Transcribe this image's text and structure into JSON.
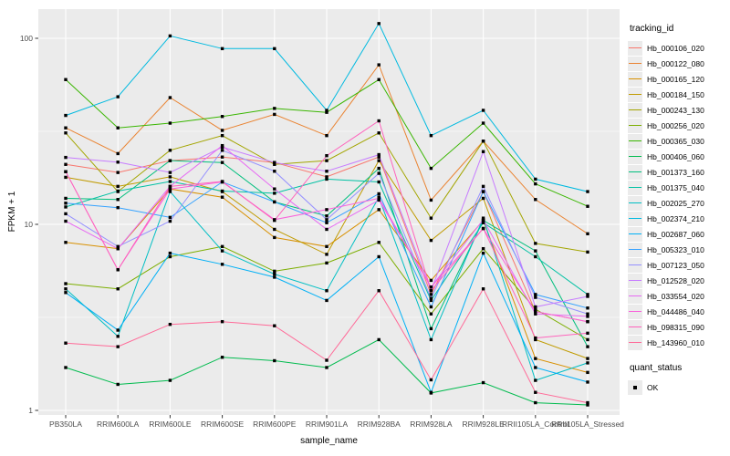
{
  "figure": {
    "background": "#FFFFFF",
    "panel_background": "#EBEBEB",
    "grid_color": "#FFFFFF",
    "axis_text_color": "#4D4D4D",
    "tick_color": "#333333",
    "point_color": "#000000",
    "legend_key_background": "#EBEBEB"
  },
  "legend": {
    "tracking_title": "tracking_id",
    "quant_title": "quant_status",
    "quant_items": [
      {
        "label": "OK"
      }
    ]
  },
  "chart_data": {
    "type": "line",
    "title": "",
    "xlabel": "sample_name",
    "ylabel": "FPKM + 1",
    "y_scale": "log10",
    "y_ticks": [
      1,
      10,
      100
    ],
    "y_minor_ticks": [
      3.1623,
      31.623
    ],
    "ylim": [
      1,
      130
    ],
    "grid": true,
    "legend_position": "right",
    "point_shape": "square",
    "quant_status": "OK",
    "categories": [
      "PB350LA",
      "RRIM600LA",
      "RRIM600LE",
      "RRIM600SE",
      "RRIM600PE",
      "RRIM901LA",
      "RRIM928BA",
      "RRIM928LA",
      "RRIM928LE",
      "RRII105LA_Control",
      "RRII105LA_Stressed"
    ],
    "series": [
      {
        "name": "Hb_000106_020",
        "color": "#F8766D",
        "values": [
          21,
          19,
          22,
          23,
          21.5,
          18,
          23,
          4.2,
          15,
          3.4,
          3.0
        ]
      },
      {
        "name": "Hb_000122_080",
        "color": "#EA8331",
        "values": [
          33,
          24,
          48,
          32,
          39,
          30,
          72,
          13.5,
          28,
          13.6,
          8.9
        ]
      },
      {
        "name": "Hb_000165_120",
        "color": "#D89000",
        "values": [
          8.0,
          7.4,
          15.5,
          14,
          8.5,
          7.6,
          12,
          5.0,
          10.5,
          1.9,
          1.6
        ]
      },
      {
        "name": "Hb_000184_150",
        "color": "#C09B00",
        "values": [
          17.9,
          16,
          18,
          15,
          9.4,
          6.9,
          22,
          8.2,
          13.8,
          2.4,
          1.9
        ]
      },
      {
        "name": "Hb_000243_130",
        "color": "#A3A500",
        "values": [
          31,
          15,
          25,
          30,
          21,
          22,
          31,
          10.8,
          28,
          7.9,
          7.1
        ]
      },
      {
        "name": "Hb_000256_020",
        "color": "#7CAE00",
        "values": [
          4.8,
          4.5,
          6.7,
          7.6,
          5.6,
          6.2,
          8.0,
          3.3,
          7.4,
          3.5,
          2.4
        ]
      },
      {
        "name": "Hb_000365_030",
        "color": "#39B600",
        "values": [
          60,
          33,
          35,
          38,
          42,
          40,
          60,
          20,
          35,
          16.5,
          12.5
        ]
      },
      {
        "name": "Hb_000406_060",
        "color": "#00BB4E",
        "values": [
          1.7,
          1.38,
          1.45,
          1.93,
          1.85,
          1.7,
          2.4,
          1.24,
          1.41,
          1.1,
          1.07
        ]
      },
      {
        "name": "Hb_001373_160",
        "color": "#00BF7D",
        "values": [
          13.8,
          13.6,
          22,
          21.5,
          13.2,
          11.1,
          20,
          2.75,
          10.5,
          7.2,
          2.2
        ]
      },
      {
        "name": "Hb_001375_040",
        "color": "#00C1A3",
        "values": [
          12.4,
          15.1,
          17,
          15.1,
          14.7,
          17.5,
          16.9,
          3.9,
          10.2,
          6.7,
          4.2
        ]
      },
      {
        "name": "Hb_002025_270",
        "color": "#00BFC4",
        "values": [
          4.5,
          2.5,
          15,
          7.2,
          5.4,
          4.4,
          14,
          2.4,
          10.8,
          1.45,
          1.8
        ]
      },
      {
        "name": "Hb_002374_210",
        "color": "#00BAE0",
        "values": [
          38.5,
          48.5,
          103,
          88,
          88,
          41,
          120,
          30,
          41,
          17.5,
          15
        ]
      },
      {
        "name": "Hb_002687_060",
        "color": "#00B0F6",
        "values": [
          4.3,
          2.7,
          7.0,
          6.1,
          5.2,
          3.9,
          6.7,
          1.25,
          7.0,
          1.7,
          1.42
        ]
      },
      {
        "name": "Hb_005323_010",
        "color": "#35A2FF",
        "values": [
          13.0,
          12.3,
          10.9,
          16.9,
          13.2,
          10.2,
          14.6,
          3.6,
          15.0,
          4.2,
          3.55
        ]
      },
      {
        "name": "Hb_007123_050",
        "color": "#9590FF",
        "values": [
          11.4,
          7.6,
          10.4,
          25,
          19.3,
          10.6,
          18.8,
          4.0,
          16.0,
          4.05,
          3.3
        ]
      },
      {
        "name": "Hb_012528_020",
        "color": "#C77CFF",
        "values": [
          22.9,
          21.6,
          19,
          26,
          21.5,
          19.3,
          23.7,
          4.4,
          24.6,
          3.6,
          4.1
        ]
      },
      {
        "name": "Hb_033554_020",
        "color": "#E76BF3",
        "values": [
          10.4,
          7.4,
          16,
          26.5,
          15.5,
          9.4,
          13.5,
          4.6,
          10.6,
          3.3,
          3.2
        ]
      },
      {
        "name": "Hb_044486_040",
        "color": "#FA62DB",
        "values": [
          19.2,
          5.7,
          15.5,
          16.9,
          10.6,
          12,
          13.8,
          4.6,
          9.5,
          3.4,
          3.0
        ]
      },
      {
        "name": "Hb_098315_090",
        "color": "#FF62BC",
        "values": [
          19.2,
          5.7,
          16,
          17,
          10.5,
          23.4,
          36,
          4.4,
          9.5,
          2.45,
          2.6
        ]
      },
      {
        "name": "Hb_143960_010",
        "color": "#FF6A98",
        "values": [
          2.3,
          2.2,
          2.9,
          3.0,
          2.85,
          1.86,
          4.4,
          1.46,
          4.5,
          1.25,
          1.1
        ]
      }
    ]
  }
}
